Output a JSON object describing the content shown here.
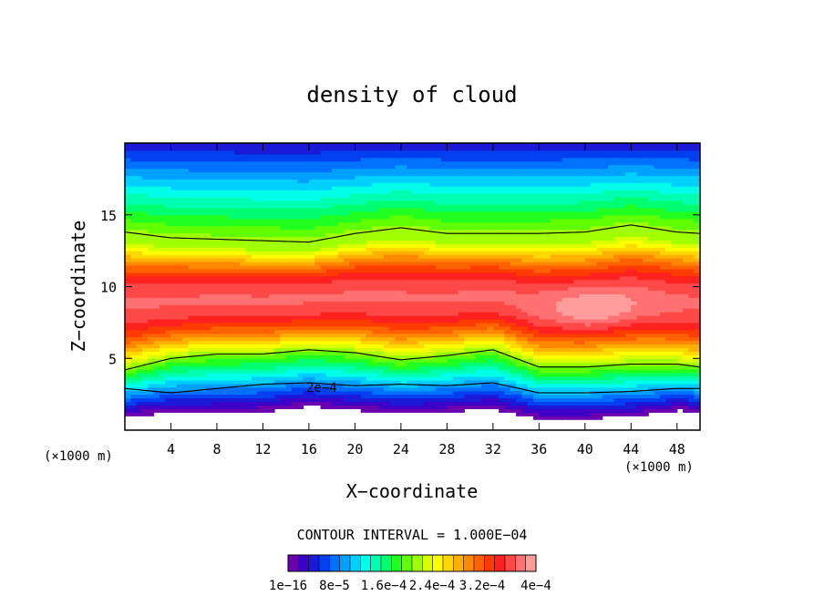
{
  "chart_data": {
    "type": "heatmap",
    "title": "density of cloud",
    "xlabel": "X−coordinate",
    "ylabel": "Z−coordinate",
    "x_unit_left": "(×1000 m)",
    "x_unit_right": "(×1000 m)",
    "xlim": [
      0,
      50
    ],
    "ylim": [
      0,
      20
    ],
    "x_ticks": [
      4,
      8,
      12,
      16,
      20,
      24,
      28,
      32,
      36,
      40,
      44,
      48
    ],
    "x_tick_labels": [
      "4",
      "8",
      "12",
      "16",
      "20",
      "24",
      "28",
      "32",
      "36",
      "40",
      "44",
      "48"
    ],
    "y_ticks": [
      5,
      10,
      15
    ],
    "y_tick_labels": [
      "5",
      "10",
      "15"
    ],
    "contour_interval_text": "CONTOUR INTERVAL = 1.000E−04",
    "contour_label": "2e−4",
    "colorbar": {
      "colors": [
        "#6a00b0",
        "#3c00c8",
        "#1a1ad8",
        "#0040f0",
        "#0070ff",
        "#00a0ff",
        "#00d0ff",
        "#00ffe8",
        "#00ffb0",
        "#00ff70",
        "#20ff20",
        "#60ff00",
        "#a0ff00",
        "#d8ff00",
        "#ffff00",
        "#ffd800",
        "#ffb000",
        "#ff8800",
        "#ff6000",
        "#ff3c00",
        "#ff2020",
        "#ff4848",
        "#ff7070",
        "#ff9c9c"
      ],
      "tick_labels": [
        "1e−16",
        "8e−5",
        "1.6e−4",
        "2.4e−4",
        "3.2e−4",
        "4e−4"
      ]
    },
    "profile": {
      "x": [
        0,
        4,
        8,
        12,
        16,
        20,
        24,
        28,
        32,
        36,
        40,
        44,
        48,
        50
      ],
      "cloud_base_z": [
        1.0,
        1.2,
        1.2,
        1.3,
        1.7,
        1.4,
        1.2,
        1.3,
        1.5,
        0.8,
        0.8,
        1.0,
        1.4,
        1.3
      ],
      "lower_contour_z": [
        4.2,
        5.0,
        5.3,
        5.3,
        5.6,
        5.4,
        4.9,
        5.2,
        5.6,
        4.4,
        4.4,
        4.6,
        4.6,
        4.4
      ],
      "upper_contour_z": [
        13.8,
        13.4,
        13.3,
        13.2,
        13.1,
        13.7,
        14.1,
        13.7,
        13.7,
        13.7,
        13.8,
        14.3,
        13.8,
        13.7
      ],
      "inner_contour_z": [
        2.9,
        2.6,
        2.9,
        3.2,
        3.3,
        3.1,
        3.2,
        3.1,
        3.3,
        2.6,
        2.6,
        2.7,
        2.9,
        2.9
      ],
      "core_max": 0.0004
    }
  }
}
